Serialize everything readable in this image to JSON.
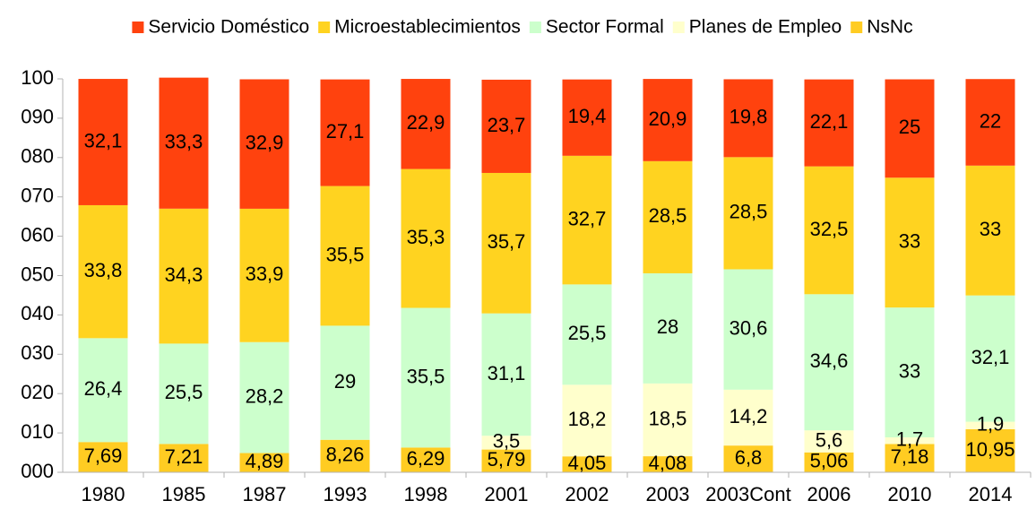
{
  "chart_data": {
    "type": "stacked_bar",
    "categories": [
      "1980",
      "1985",
      "1987",
      "1993",
      "1998",
      "2001",
      "2002",
      "2003",
      "2003Cont",
      "2006",
      "2010",
      "2014"
    ],
    "series": [
      {
        "name": "Servicio Doméstico",
        "color": "#ff420e",
        "values": [
          32.1,
          33.3,
          32.9,
          27.1,
          22.9,
          23.7,
          19.4,
          20.9,
          19.8,
          22.1,
          25,
          22
        ],
        "value_labels": [
          "32,1",
          "33,3",
          "32,9",
          "27,1",
          "22,9",
          "23,7",
          "19,4",
          "20,9",
          "19,8",
          "22,1",
          "25",
          "22"
        ]
      },
      {
        "name": "Microestablecimientos",
        "color": "#ffd320",
        "values": [
          33.8,
          34.3,
          33.9,
          35.5,
          35.3,
          35.7,
          32.7,
          28.5,
          28.5,
          32.5,
          33,
          33
        ],
        "value_labels": [
          "33,8",
          "34,3",
          "33,9",
          "35,5",
          "35,3",
          "35,7",
          "32,7",
          "28,5",
          "28,5",
          "32,5",
          "33",
          "33"
        ]
      },
      {
        "name": "Sector Formal",
        "color": "#ccffcc",
        "values": [
          26.4,
          25.5,
          28.2,
          29,
          35.5,
          31.1,
          25.5,
          28,
          30.6,
          34.6,
          33,
          32.1
        ],
        "value_labels": [
          "26,4",
          "25,5",
          "28,2",
          "29",
          "35,5",
          "31,1",
          "25,5",
          "28",
          "30,6",
          "34,6",
          "33",
          "32,1"
        ]
      },
      {
        "name": "Planes de Empleo",
        "color": "#ffffcc",
        "values": [
          null,
          null,
          null,
          null,
          null,
          3.5,
          18.2,
          18.5,
          14.2,
          5.6,
          1.7,
          1.9
        ],
        "value_labels": [
          null,
          null,
          null,
          null,
          null,
          "3,5",
          "18,2",
          "18,5",
          "14,2",
          "5,6",
          "1,7",
          "1,9"
        ]
      },
      {
        "name": "NsNc",
        "color": "#ffcc22",
        "values": [
          7.69,
          7.21,
          4.89,
          8.26,
          6.29,
          5.79,
          4.05,
          4.08,
          6.8,
          5.06,
          7.18,
          10.95
        ],
        "value_labels": [
          "7,69",
          "7,21",
          "4,89",
          "8,26",
          "6,29",
          "5,79",
          "4,05",
          "4,08",
          "6,8",
          "5,06",
          "7,18",
          "10,95"
        ]
      }
    ],
    "ylim": [
      0,
      100
    ],
    "yticks": [
      {
        "value": 0,
        "label": "000"
      },
      {
        "value": 10,
        "label": "010"
      },
      {
        "value": 20,
        "label": "020"
      },
      {
        "value": 30,
        "label": "030"
      },
      {
        "value": 40,
        "label": "040"
      },
      {
        "value": 50,
        "label": "050"
      },
      {
        "value": 60,
        "label": "060"
      },
      {
        "value": 70,
        "label": "070"
      },
      {
        "value": 80,
        "label": "080"
      },
      {
        "value": 90,
        "label": "090"
      },
      {
        "value": 100,
        "label": "100"
      }
    ],
    "grid": false,
    "legend": "top"
  }
}
